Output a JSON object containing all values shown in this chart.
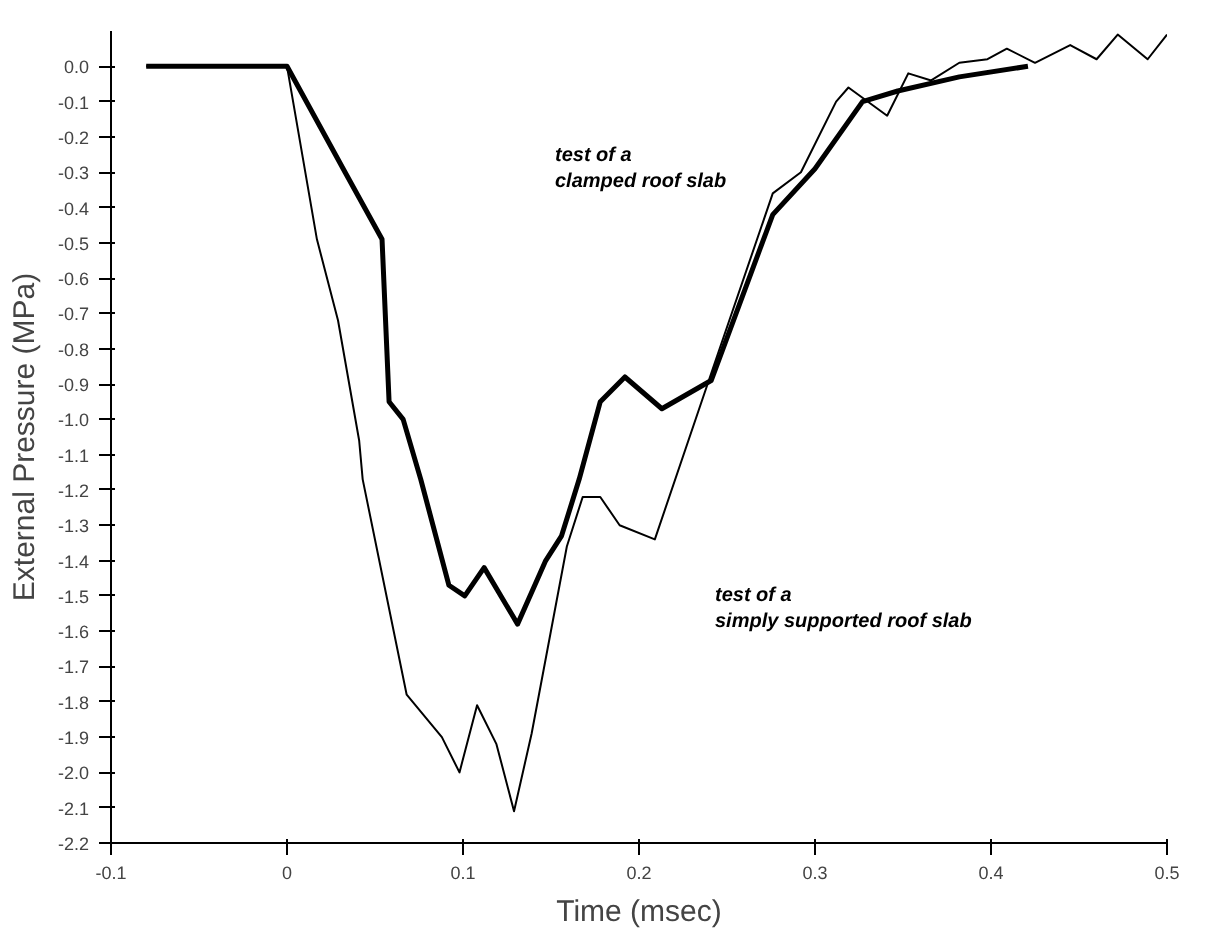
{
  "chart_data": {
    "type": "line",
    "xlabel": "Time (msec)",
    "ylabel": "External Pressure (MPa)",
    "xlim": [
      -0.1,
      0.5
    ],
    "ylim": [
      -2.2,
      0.1
    ],
    "xticks": [
      -0.1,
      0,
      0.1,
      0.2,
      0.3,
      0.4,
      0.5
    ],
    "yticks": [
      {
        "value": 0,
        "label": "0.0"
      },
      -0.1,
      -0.2,
      -0.3,
      -0.4,
      -0.5,
      -0.6,
      -0.7,
      -0.8,
      -0.9,
      {
        "value": -1,
        "label": "-1.0"
      },
      -1.1,
      -1.2,
      -1.3,
      -1.4,
      -1.5,
      -1.6,
      -1.7,
      -1.8,
      -1.9,
      {
        "value": -2,
        "label": "-2.0"
      },
      -2.1,
      -2.2
    ],
    "grid": false,
    "marker": "none",
    "line_style": "solid",
    "series": [
      {
        "color": "#000000",
        "x": [
          -0.08,
          0.0,
          0.033,
          0.054,
          0.058,
          0.066,
          0.076,
          0.092,
          0.101,
          0.112,
          0.131,
          0.147,
          0.156,
          0.166,
          0.178,
          0.192,
          0.213,
          0.241,
          0.276,
          0.3,
          0.327,
          0.347,
          0.382,
          0.421
        ],
        "values": [
          0,
          0,
          -0.3,
          -0.49,
          -0.95,
          -1.0,
          -1.17,
          -1.47,
          -1.5,
          -1.42,
          -1.58,
          -1.4,
          -1.33,
          -1.17,
          -0.95,
          -0.88,
          -0.97,
          -0.89,
          -0.42,
          -0.29,
          -0.1,
          -0.07,
          -0.03,
          0.0
        ]
      },
      {
        "color": "#000000",
        "x": [
          -0.08,
          0.0,
          0.017,
          0.029,
          0.041,
          0.043,
          0.068,
          0.088,
          0.098,
          0.108,
          0.119,
          0.129,
          0.139,
          0.159,
          0.168,
          0.178,
          0.189,
          0.209,
          0.241,
          0.276,
          0.292,
          0.312,
          0.319,
          0.341,
          0.353,
          0.366,
          0.382,
          0.398,
          0.409,
          0.425,
          0.445,
          0.46,
          0.472,
          0.489,
          0.5
        ],
        "values": [
          0,
          0,
          -0.49,
          -0.72,
          -1.06,
          -1.17,
          -1.78,
          -1.9,
          -2.0,
          -1.81,
          -1.92,
          -2.11,
          -1.89,
          -1.36,
          -1.22,
          -1.22,
          -1.3,
          -1.34,
          -0.87,
          -0.36,
          -0.3,
          -0.1,
          -0.06,
          -0.14,
          -0.02,
          -0.04,
          0.01,
          0.02,
          0.05,
          0.01,
          0.06,
          0.02,
          0.09,
          0.02,
          0.09
        ]
      }
    ],
    "annotations": [
      "test of a\nclamped roof slab",
      "test of a\nsimply supported roof slab"
    ]
  }
}
